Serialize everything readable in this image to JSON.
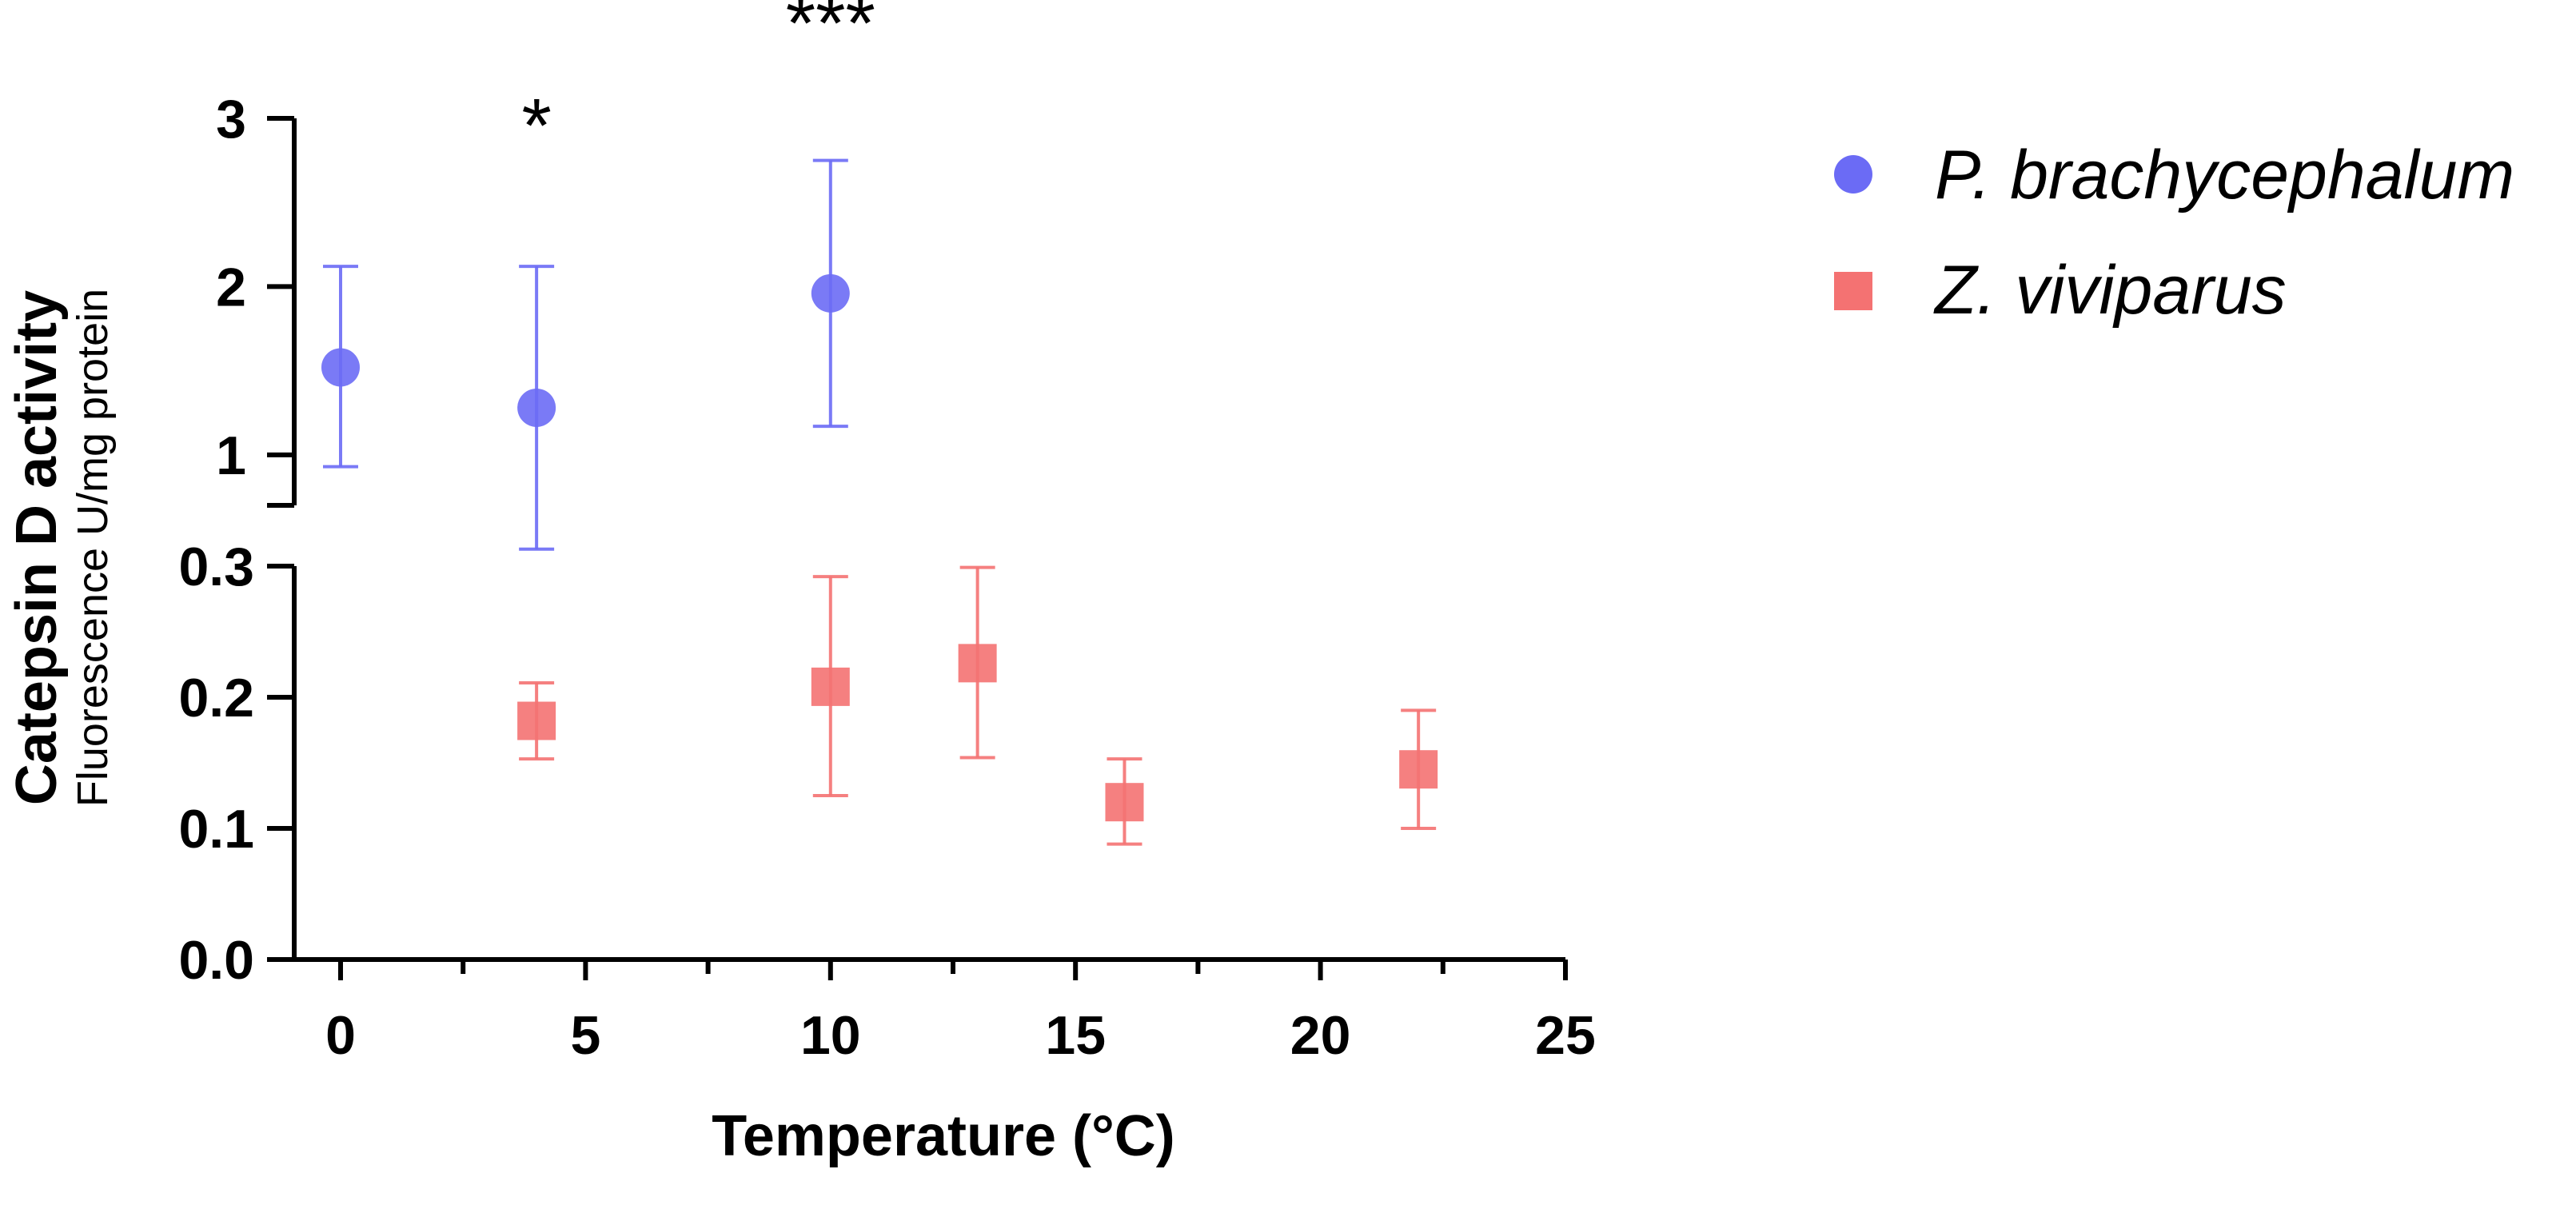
{
  "chart_data": {
    "type": "scatter",
    "title": "",
    "xlabel": "Temperature (°C)",
    "ylabel": "Catepsin D activity",
    "ylabel_sub": "Fluorescence U/mg protein",
    "xlim": [
      -1,
      25
    ],
    "xticks": [
      0,
      5,
      10,
      15,
      20,
      25
    ],
    "y_axis_break": true,
    "ylim_lower": [
      0,
      0.3
    ],
    "yticks_lower": [
      "0.0",
      "0.1",
      "0.2",
      "0.3"
    ],
    "ylim_upper": [
      0.7,
      3
    ],
    "yticks_upper": [
      "1",
      "2",
      "3"
    ],
    "legend_position": "top-right",
    "series": [
      {
        "name": "P. brachycephalum",
        "marker": "circle",
        "color": "#6B6BF5",
        "x": [
          0,
          4,
          10
        ],
        "y": [
          1.52,
          1.28,
          1.96
        ],
        "err_low": [
          0.93,
          0.44,
          1.17
        ],
        "err_high": [
          2.12,
          2.12,
          2.75
        ]
      },
      {
        "name": "Z. viviparus",
        "marker": "square",
        "color": "#F47272",
        "x": [
          4,
          10,
          13,
          16,
          22
        ],
        "y": [
          0.182,
          0.208,
          0.226,
          0.12,
          0.145
        ],
        "err_low": [
          0.153,
          0.125,
          0.154,
          0.088,
          0.1
        ],
        "err_high": [
          0.211,
          0.292,
          0.299,
          0.153,
          0.19
        ]
      }
    ],
    "annotations": [
      {
        "x": 4,
        "text": "*"
      },
      {
        "x": 10,
        "text": "***"
      }
    ]
  }
}
